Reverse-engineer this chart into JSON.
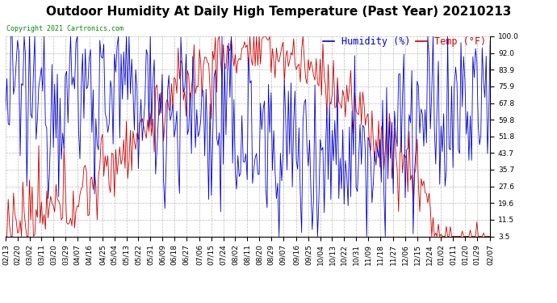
{
  "title": "Outdoor Humidity At Daily High Temperature (Past Year) 20210213",
  "copyright": "Copyright 2021 Cartronics.com",
  "legend_humidity": "Humidity (%)",
  "legend_temp": "Temp (°F)",
  "yticks": [
    3.5,
    11.5,
    19.6,
    27.6,
    35.7,
    43.7,
    51.8,
    59.8,
    67.8,
    75.9,
    83.9,
    92.0,
    100.0
  ],
  "ylim": [
    3.5,
    100.0
  ],
  "x_labels": [
    "02/13",
    "02/20",
    "03/02",
    "03/11",
    "03/20",
    "03/29",
    "04/07",
    "04/16",
    "04/25",
    "05/04",
    "05/13",
    "05/22",
    "05/31",
    "06/09",
    "06/18",
    "06/27",
    "07/06",
    "07/15",
    "07/24",
    "08/02",
    "08/11",
    "08/20",
    "08/29",
    "09/07",
    "09/16",
    "09/25",
    "10/04",
    "10/13",
    "10/22",
    "10/31",
    "11/09",
    "11/18",
    "11/27",
    "12/06",
    "12/15",
    "12/24",
    "01/02",
    "01/11",
    "01/20",
    "01/29",
    "02/07"
  ],
  "color_humidity": "#0000cc",
  "color_temp": "#cc0000",
  "color_grid": "#bbbbbb",
  "color_bg": "#ffffff",
  "title_fontsize": 11,
  "tick_fontsize": 6.5,
  "legend_fontsize": 8.5
}
